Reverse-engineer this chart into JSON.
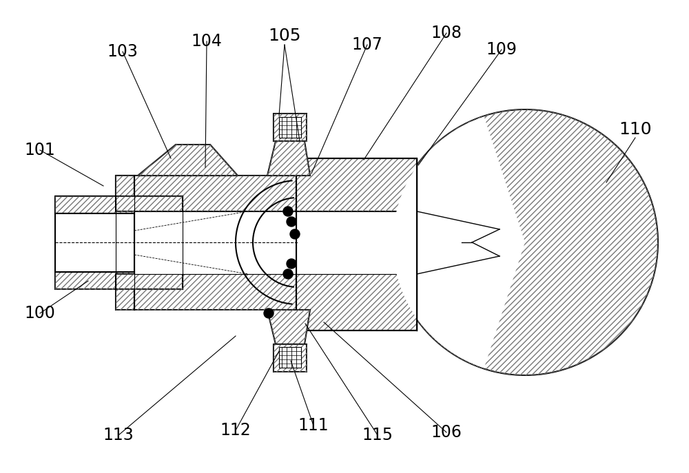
{
  "bg_color": "#ffffff",
  "line_color": "#000000",
  "font_size": 18,
  "lw_main": 1.5,
  "lw_thin": 0.8
}
